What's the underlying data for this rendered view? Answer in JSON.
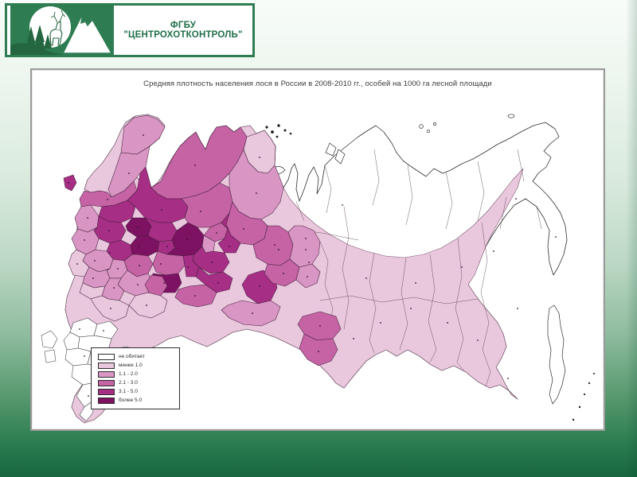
{
  "header": {
    "org_name": "ФГБУ \"ЦЕНТРОХОТКОНТРОЛЬ\""
  },
  "map_panel": {
    "title": "Средняя плотность населения лося в России в 2008-2010 гг., особей на 1000 га лесной площади",
    "legend": {
      "items": [
        {
          "label": "не обитает",
          "color": "#ffffff"
        },
        {
          "label": "менее 1.0",
          "color": "#e9c7dd"
        },
        {
          "label": "1.1 - 2.0",
          "color": "#d996c4"
        },
        {
          "label": "2.1 - 3.0",
          "color": "#c563a4"
        },
        {
          "label": "3.1 - 5.0",
          "color": "#a62e85"
        },
        {
          "label": "более 5.0",
          "color": "#7d1162"
        }
      ]
    }
  },
  "colors": {
    "accent_green": "#2e7d52",
    "header_text_green": "#1f6f49",
    "panel_border_gray": "#9a9a9a",
    "map_outline": "#2f2f2f",
    "background_bottom_green": "#176640"
  }
}
